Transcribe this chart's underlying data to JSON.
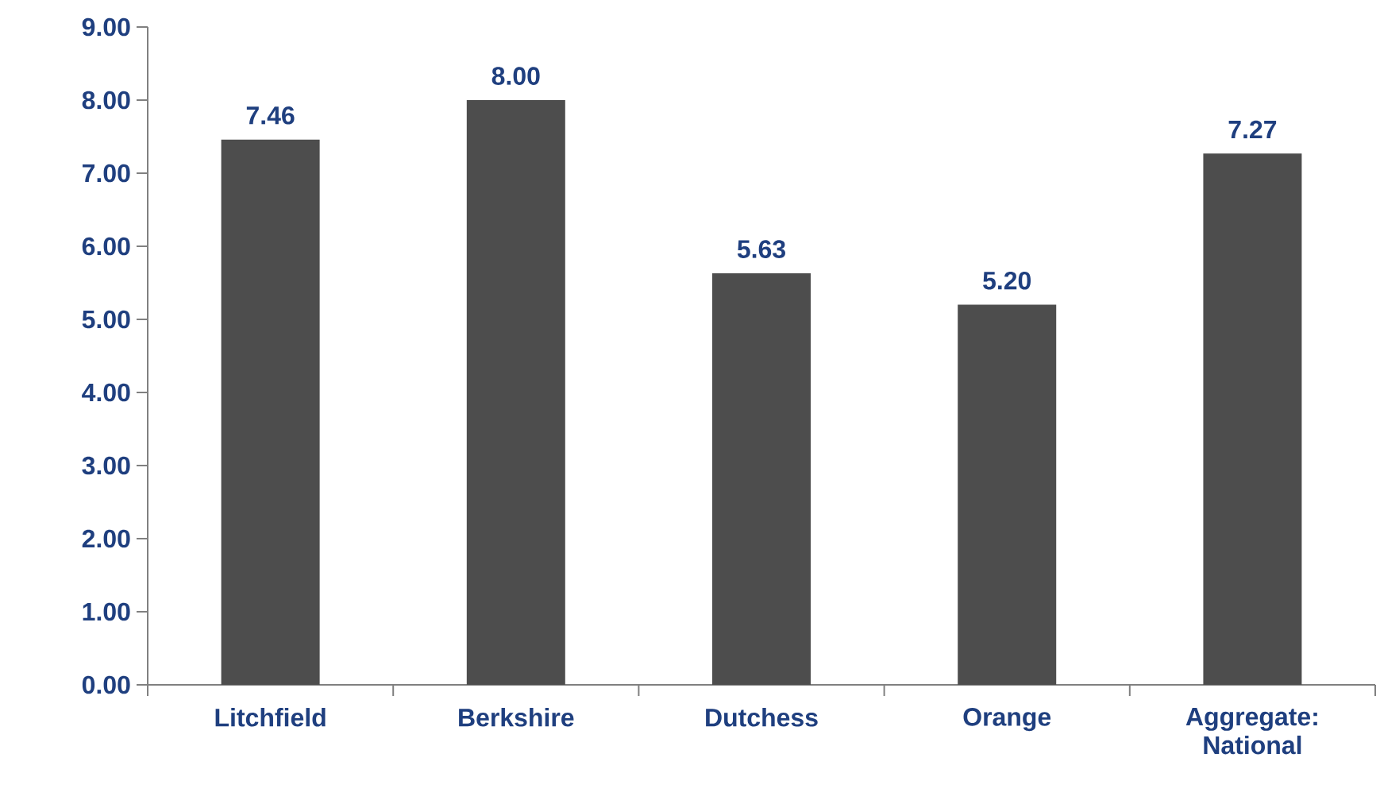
{
  "chart_data": {
    "type": "bar",
    "categories": [
      "Litchfield",
      "Berkshire",
      "Dutchess",
      "Orange",
      "Aggregate: National"
    ],
    "values": [
      7.46,
      8.0,
      5.63,
      5.2,
      7.27
    ],
    "value_labels": [
      "7.46",
      "8.00",
      "5.63",
      "5.20",
      "7.27"
    ],
    "color": "#4d4d4d",
    "ylim": [
      0,
      9
    ],
    "yticks": [
      {
        "value": 0,
        "label": "0.00"
      },
      {
        "value": 1,
        "label": "1.00"
      },
      {
        "value": 2,
        "label": "2.00"
      },
      {
        "value": 3,
        "label": "3.00"
      },
      {
        "value": 4,
        "label": "4.00"
      },
      {
        "value": 5,
        "label": "5.00"
      },
      {
        "value": 6,
        "label": "6.00"
      },
      {
        "value": 7,
        "label": "7.00"
      },
      {
        "value": 8,
        "label": "8.00"
      },
      {
        "value": 9,
        "label": "9.00"
      }
    ],
    "grid": false
  }
}
